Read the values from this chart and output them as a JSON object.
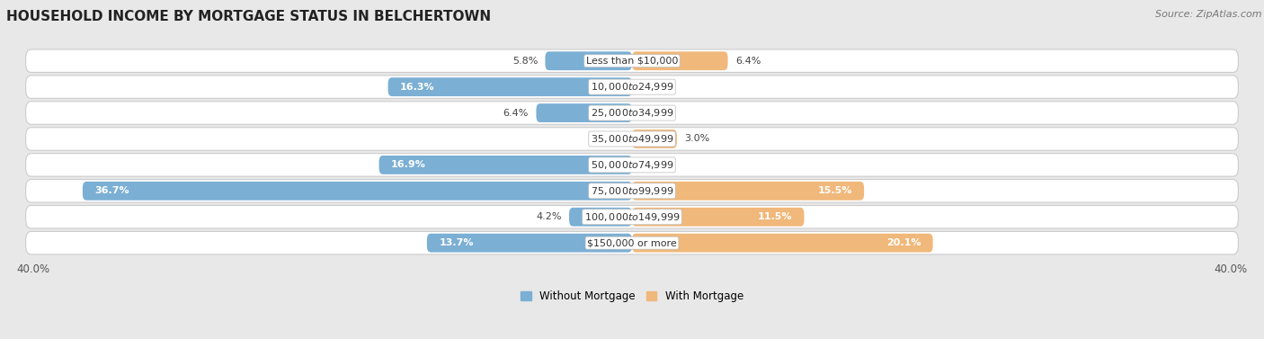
{
  "title": "HOUSEHOLD INCOME BY MORTGAGE STATUS IN BELCHERTOWN",
  "source": "Source: ZipAtlas.com",
  "categories": [
    "Less than $10,000",
    "$10,000 to $24,999",
    "$25,000 to $34,999",
    "$35,000 to $49,999",
    "$50,000 to $74,999",
    "$75,000 to $99,999",
    "$100,000 to $149,999",
    "$150,000 or more"
  ],
  "without_mortgage": [
    5.8,
    16.3,
    6.4,
    0.0,
    16.9,
    36.7,
    4.2,
    13.7
  ],
  "with_mortgage": [
    6.4,
    0.0,
    0.0,
    3.0,
    0.0,
    15.5,
    11.5,
    20.1
  ],
  "color_without": "#7bafd4",
  "color_with": "#f0b87a",
  "axis_limit": 40.0,
  "bg_color": "#e8e8e8",
  "row_bg_color": "#f5f5f5",
  "row_border_color": "#cccccc",
  "title_fontsize": 11,
  "source_fontsize": 8,
  "label_fontsize": 8,
  "cat_fontsize": 8,
  "legend_fontsize": 8.5,
  "axis_label_fontsize": 8.5
}
